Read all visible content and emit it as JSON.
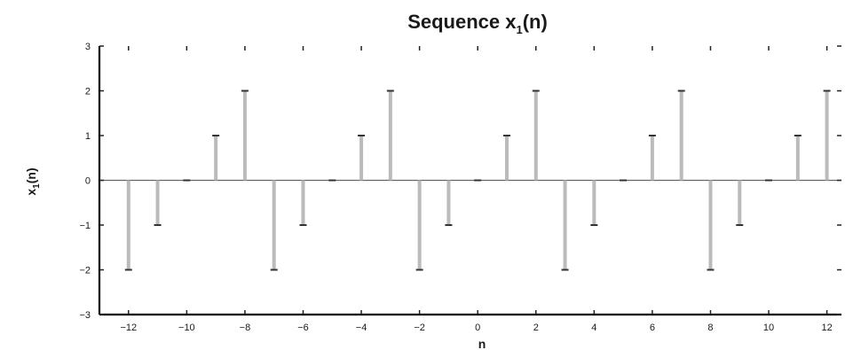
{
  "chart_data": {
    "type": "stem",
    "title_main": "Sequence x",
    "title_sub": "1",
    "title_end": "(n)",
    "xlabel": "n",
    "ylabel_main": "x",
    "ylabel_sub": "1",
    "ylabel_end": "(n)",
    "xlim": [
      -13,
      12.5
    ],
    "ylim": [
      -3,
      3
    ],
    "xticks": [
      -12,
      -10,
      -8,
      -6,
      -4,
      -2,
      0,
      2,
      4,
      6,
      8,
      10,
      12
    ],
    "xtick_labels": [
      "−12",
      "−10",
      "−8",
      "−6",
      "−4",
      "−2",
      "0",
      "2",
      "4",
      "6",
      "8",
      "10",
      "12"
    ],
    "yticks": [
      -3,
      -2,
      -1,
      0,
      1,
      2,
      3
    ],
    "ytick_labels": [
      "−3",
      "−2",
      "−1",
      "0",
      "1",
      "2",
      "3"
    ],
    "x": [
      -12,
      -11,
      -10,
      -9,
      -8,
      -7,
      -6,
      -5,
      -4,
      -3,
      -2,
      -1,
      0,
      1,
      2,
      3,
      4,
      5,
      6,
      7,
      8,
      9,
      10,
      11,
      12
    ],
    "y": [
      -2,
      -1,
      0,
      1,
      2,
      -2,
      -1,
      0,
      1,
      2,
      -2,
      -1,
      0,
      1,
      2,
      -2,
      -1,
      0,
      1,
      2,
      -2,
      -1,
      0,
      1,
      2
    ],
    "stem_color": "#bbbbbb",
    "marker_color": "#333333",
    "axis_color": "#000000",
    "grid": false
  }
}
